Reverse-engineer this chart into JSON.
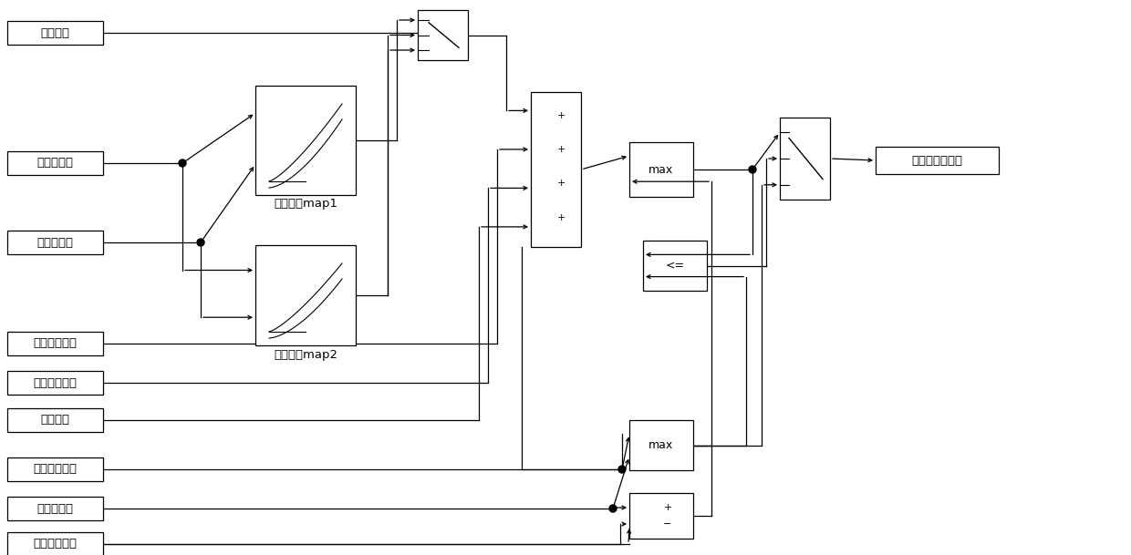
{
  "bg": "#ffffff",
  "lc": "#000000",
  "lw": 0.9,
  "fs": 9.5,
  "fs_block": 9,
  "fs_sym": 8,
  "label_right": "最终预喷柴油量",
  "map1_label": "预喷基础map1",
  "map2_label": "预喷基础map2",
  "labels": [
    "温度区间",
    "发动机转速",
    "发动机扭矩",
    "缸内温度修正",
    "大气压力修正",
    "水温修正",
    "首次最小油量",
    "柴油总油量",
    "二次最小油量"
  ]
}
